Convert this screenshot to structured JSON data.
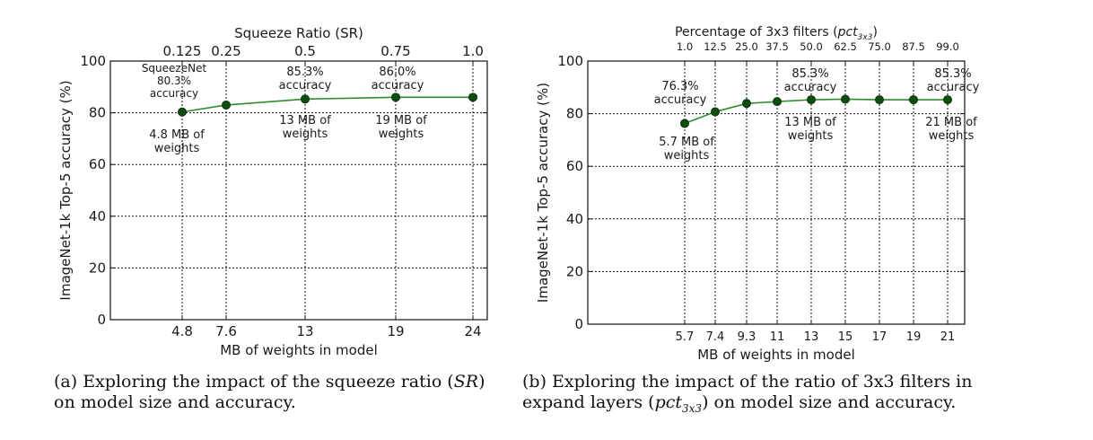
{
  "chart_data": [
    {
      "type": "line",
      "title": "Squeeze Ratio (SR)",
      "xlabel": "MB of weights in model",
      "ylabel": "ImageNet-1k Top-5 accuracy (%)",
      "x_ticks": [
        "4.8",
        "7.6",
        "13",
        "19",
        "24"
      ],
      "top_ticks": [
        "0.125",
        "0.25",
        "0.5",
        "0.75",
        "1.0"
      ],
      "y_ticks": [
        "0",
        "20",
        "40",
        "60",
        "80",
        "100"
      ],
      "ylim": [
        0,
        100
      ],
      "grid": true,
      "line_color": "#2e8b2e",
      "marker_color": "#0f4d0f",
      "series": [
        {
          "x": [
            "4.8",
            "7.6",
            "13",
            "19",
            "24"
          ],
          "values": [
            80.3,
            83.0,
            85.3,
            86.0,
            86.0
          ]
        }
      ],
      "annotations": [
        {
          "id": "sqz",
          "lines": [
            "SqueezeNet",
            "80.3%",
            "accuracy"
          ]
        },
        {
          "id": "sqz-w",
          "lines": [
            "4.8 MB of",
            "weights"
          ]
        },
        {
          "id": "a853",
          "lines": [
            "85.3%",
            "accuracy"
          ]
        },
        {
          "id": "w13",
          "lines": [
            "13 MB of",
            "weights"
          ]
        },
        {
          "id": "a860",
          "lines": [
            "86.0%",
            "accuracy"
          ]
        },
        {
          "id": "w19",
          "lines": [
            "19 MB of",
            "weights"
          ]
        }
      ]
    },
    {
      "type": "line",
      "title": "Percentage of 3x3 filters (pct",
      "title_sub": "3x3",
      "title_close": ")",
      "xlabel": "MB of weights in model",
      "ylabel": "ImageNet-1k Top-5 accuracy (%)",
      "x_ticks": [
        "5.7",
        "7.4",
        "9.3",
        "11",
        "13",
        "15",
        "17",
        "19",
        "21"
      ],
      "top_ticks": [
        "1.0",
        "12.5",
        "25.0",
        "37.5",
        "50.0",
        "62.5",
        "75.0",
        "87.5",
        "99.0"
      ],
      "y_ticks": [
        "0",
        "20",
        "40",
        "60",
        "80",
        "100"
      ],
      "ylim": [
        0,
        100
      ],
      "grid": true,
      "line_color": "#2e8b2e",
      "marker_color": "#0f4d0f",
      "series": [
        {
          "x": [
            "5.7",
            "7.4",
            "9.3",
            "11",
            "13",
            "15",
            "17",
            "19",
            "21"
          ],
          "values": [
            76.3,
            80.7,
            83.9,
            84.6,
            85.3,
            85.5,
            85.3,
            85.3,
            85.3
          ]
        }
      ],
      "annotations": [
        {
          "id": "a763",
          "lines": [
            "76.3%",
            "accuracy"
          ]
        },
        {
          "id": "w57",
          "lines": [
            "5.7 MB of",
            "weights"
          ]
        },
        {
          "id": "b853",
          "lines": [
            "85.3%",
            "accuracy"
          ]
        },
        {
          "id": "b13",
          "lines": [
            "13 MB of",
            "weights"
          ]
        },
        {
          "id": "c853",
          "lines": [
            "85.3%",
            "accuracy"
          ]
        },
        {
          "id": "w21",
          "lines": [
            "21 MB of",
            "weights"
          ]
        }
      ]
    }
  ],
  "captions": {
    "left": {
      "line1_a": "(a) Exploring the impact of the squeeze ratio (",
      "line1_var": "SR",
      "line1_b": ")",
      "line2": "on model size and accuracy."
    },
    "right": {
      "line1": "(b) Exploring the impact of the ratio of 3x3 filters in",
      "line2_a": "expand layers (",
      "line2_var": "pct",
      "line2_sub": "3x3",
      "line2_b": ") on model size and accuracy."
    }
  }
}
